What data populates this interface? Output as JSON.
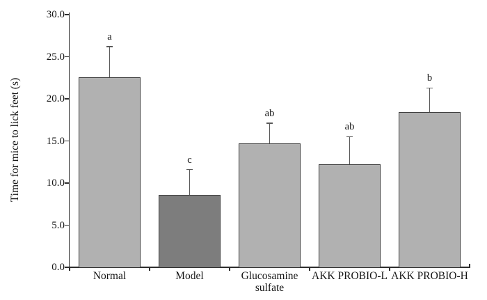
{
  "chart_data": {
    "type": "bar",
    "title": "",
    "xlabel": "",
    "ylabel": "Time for mice to lick feet (s)",
    "ylim": [
      0,
      30
    ],
    "ytick_step": 5,
    "ytick_labels": [
      "0.0",
      "5.0",
      "10.0",
      "15.0",
      "20.0",
      "25.0",
      "30.0"
    ],
    "categories": [
      "Normal",
      "Model",
      "Glucosamine\nsulfate",
      "AKK PROBIO-L",
      "AKK PROBIO-H"
    ],
    "values": [
      22.6,
      8.6,
      14.7,
      12.2,
      18.4
    ],
    "errors_upper": [
      3.6,
      3.0,
      2.4,
      3.3,
      2.9
    ],
    "sig_letters": [
      "a",
      "c",
      "ab",
      "ab",
      "b"
    ],
    "bar_colors": [
      "#b1b1b1",
      "#7d7d7d",
      "#b1b1b1",
      "#b1b1b1",
      "#b1b1b1"
    ],
    "bar_border_color": "#3f3f3f",
    "error_bar_color": "#595959",
    "axis_color": "#2e2e2e",
    "text_color": "#161616",
    "background_color": "#ffffff",
    "grid": false,
    "legend": null
  }
}
